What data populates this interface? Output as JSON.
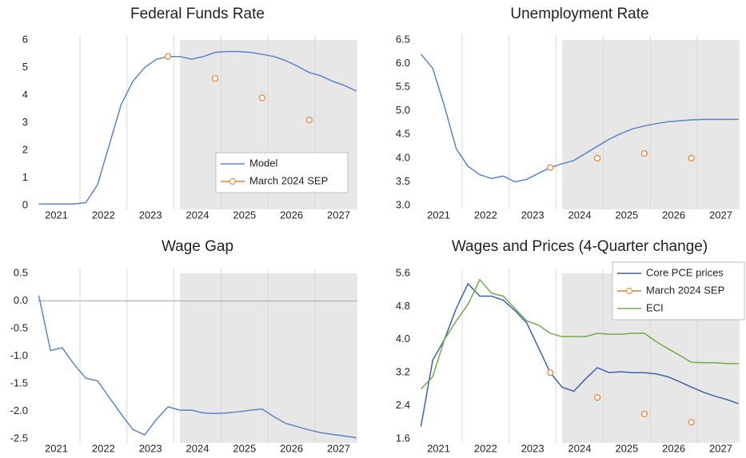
{
  "chart_data": [
    {
      "type": "line",
      "title": "Federal Funds Rate",
      "x": [
        2021.125,
        2021.375,
        2021.625,
        2021.875,
        2022.125,
        2022.375,
        2022.625,
        2022.875,
        2023.125,
        2023.375,
        2023.625,
        2023.875,
        2024.125,
        2024.375,
        2024.625,
        2024.875,
        2025.125,
        2025.375,
        2025.625,
        2025.875,
        2026.125,
        2026.375,
        2026.625,
        2026.875,
        2027.125,
        2027.375,
        2027.625,
        2027.875
      ],
      "series": [
        {
          "name": "Model",
          "color": "#5b84c9",
          "style": "line",
          "values": [
            0.05,
            0.05,
            0.05,
            0.05,
            0.1,
            0.75,
            2.2,
            3.65,
            4.5,
            5.0,
            5.3,
            5.4,
            5.4,
            5.3,
            5.4,
            5.55,
            5.58,
            5.58,
            5.55,
            5.48,
            5.4,
            5.25,
            5.05,
            4.82,
            4.7,
            4.5,
            4.35,
            4.15
          ]
        },
        {
          "name": "March 2024 SEP",
          "color": "#ed7d31",
          "style": "markers",
          "values": [
            null,
            null,
            null,
            null,
            null,
            null,
            null,
            null,
            null,
            null,
            null,
            5.4,
            null,
            null,
            null,
            4.6,
            null,
            null,
            null,
            3.9,
            null,
            null,
            null,
            3.1,
            null,
            null,
            null,
            null
          ]
        }
      ],
      "xlim": [
        2021.1,
        2027.9
      ],
      "ylim": [
        0,
        6
      ],
      "yticks": [
        0,
        1,
        2,
        3,
        4,
        5,
        6
      ],
      "xticks": [
        {
          "value": 2021.5,
          "label": "2021"
        },
        {
          "value": 2022.5,
          "label": "2022"
        },
        {
          "value": 2023.5,
          "label": "2023"
        },
        {
          "value": 2024.5,
          "label": "2024"
        },
        {
          "value": 2025.5,
          "label": "2025"
        },
        {
          "value": 2026.5,
          "label": "2026"
        },
        {
          "value": 2027.5,
          "label": "2027"
        }
      ],
      "xgrid": [
        2022,
        2023,
        2024,
        2025,
        2026,
        2027
      ],
      "shade_from": 2024.125,
      "legend": "lower right"
    },
    {
      "type": "line",
      "title": "Unemployment Rate",
      "x": [
        2021.125,
        2021.375,
        2021.625,
        2021.875,
        2022.125,
        2022.375,
        2022.625,
        2022.875,
        2023.125,
        2023.375,
        2023.625,
        2023.875,
        2024.125,
        2024.375,
        2024.625,
        2024.875,
        2025.125,
        2025.375,
        2025.625,
        2025.875,
        2026.125,
        2026.375,
        2026.625,
        2026.875,
        2027.125,
        2027.375,
        2027.625,
        2027.875
      ],
      "series": [
        {
          "name": "Model",
          "color": "#5b84c9",
          "style": "line",
          "values": [
            6.2,
            5.9,
            5.1,
            4.2,
            3.83,
            3.65,
            3.57,
            3.62,
            3.5,
            3.55,
            3.68,
            3.8,
            3.88,
            3.95,
            4.1,
            4.25,
            4.4,
            4.52,
            4.62,
            4.68,
            4.73,
            4.77,
            4.79,
            4.81,
            4.82,
            4.82,
            4.82,
            4.82
          ]
        },
        {
          "name": "March 2024 SEP",
          "color": "#ed7d31",
          "style": "markers",
          "values": [
            null,
            null,
            null,
            null,
            null,
            null,
            null,
            null,
            null,
            null,
            null,
            3.8,
            null,
            null,
            null,
            4.0,
            null,
            null,
            null,
            4.1,
            null,
            null,
            null,
            4.0,
            null,
            null,
            null,
            null
          ]
        }
      ],
      "xlim": [
        2021.1,
        2027.9
      ],
      "ylim": [
        3,
        6.5
      ],
      "yticks": [
        {
          "value": 3,
          "label": "3.0"
        },
        3.5,
        {
          "value": 4,
          "label": "4.0"
        },
        4.5,
        {
          "value": 5,
          "label": "5.0"
        },
        5.5,
        {
          "value": 6,
          "label": "6.0"
        },
        6.5
      ],
      "xticks": [
        {
          "value": 2021.5,
          "label": "2021"
        },
        {
          "value": 2022.5,
          "label": "2022"
        },
        {
          "value": 2023.5,
          "label": "2023"
        },
        {
          "value": 2024.5,
          "label": "2024"
        },
        {
          "value": 2025.5,
          "label": "2025"
        },
        {
          "value": 2026.5,
          "label": "2026"
        },
        {
          "value": 2027.5,
          "label": "2027"
        }
      ],
      "xgrid": [
        2022,
        2023,
        2024,
        2025,
        2026,
        2027
      ],
      "shade_from": 2024.125
    },
    {
      "type": "line",
      "title": "Wage Gap",
      "x": [
        2021.125,
        2021.375,
        2021.625,
        2021.875,
        2022.125,
        2022.375,
        2022.625,
        2022.875,
        2023.125,
        2023.375,
        2023.625,
        2023.875,
        2024.125,
        2024.375,
        2024.625,
        2024.875,
        2025.125,
        2025.375,
        2025.625,
        2025.875,
        2026.125,
        2026.375,
        2026.625,
        2026.875,
        2027.125,
        2027.375,
        2027.625,
        2027.875
      ],
      "series": [
        {
          "name": "Model",
          "color": "#5b84c9",
          "style": "line",
          "values": [
            0.1,
            -0.9,
            -0.85,
            -1.15,
            -1.4,
            -1.45,
            -1.75,
            -2.05,
            -2.33,
            -2.43,
            -2.15,
            -1.92,
            -1.98,
            -1.98,
            -2.03,
            -2.04,
            -2.03,
            -2.01,
            -1.98,
            -1.96,
            -2.1,
            -2.22,
            -2.28,
            -2.34,
            -2.39,
            -2.42,
            -2.45,
            -2.48
          ]
        }
      ],
      "xlim": [
        2021.1,
        2027.9
      ],
      "ylim": [
        -2.5,
        0.5
      ],
      "yticks": [
        -2.5,
        {
          "value": -2,
          "label": "-2.0"
        },
        -1.5,
        {
          "value": -1,
          "label": "-1.0"
        },
        -0.5,
        {
          "value": 0,
          "label": "0.0"
        },
        0.5
      ],
      "xticks": [
        {
          "value": 2021.5,
          "label": "2021"
        },
        {
          "value": 2022.5,
          "label": "2022"
        },
        {
          "value": 2023.5,
          "label": "2023"
        },
        {
          "value": 2024.5,
          "label": "2024"
        },
        {
          "value": 2025.5,
          "label": "2025"
        },
        {
          "value": 2026.5,
          "label": "2026"
        },
        {
          "value": 2027.5,
          "label": "2027"
        }
      ],
      "xgrid": [
        2022,
        2023,
        2024,
        2025,
        2026,
        2027
      ],
      "shade_from": 2024.125,
      "zero_line": true
    },
    {
      "type": "line",
      "title": "Wages and Prices (4-Quarter change)",
      "x": [
        2021.125,
        2021.375,
        2021.625,
        2021.875,
        2022.125,
        2022.375,
        2022.625,
        2022.875,
        2023.125,
        2023.375,
        2023.625,
        2023.875,
        2024.125,
        2024.375,
        2024.625,
        2024.875,
        2025.125,
        2025.375,
        2025.625,
        2025.875,
        2026.125,
        2026.375,
        2026.625,
        2026.875,
        2027.125,
        2027.375,
        2027.625,
        2027.875
      ],
      "series": [
        {
          "name": "Core PCE prices",
          "color": "#3f62ad",
          "style": "line",
          "values": [
            1.9,
            3.5,
            4.0,
            4.75,
            5.35,
            5.05,
            5.05,
            4.95,
            4.7,
            4.4,
            3.8,
            3.2,
            2.85,
            2.75,
            3.05,
            3.32,
            3.2,
            3.22,
            3.2,
            3.2,
            3.17,
            3.1,
            2.98,
            2.85,
            2.73,
            2.63,
            2.55,
            2.45
          ]
        },
        {
          "name": "March 2024 SEP",
          "color": "#ed7d31",
          "style": "markers",
          "values": [
            null,
            null,
            null,
            null,
            null,
            null,
            null,
            null,
            null,
            null,
            null,
            3.2,
            null,
            null,
            null,
            2.6,
            null,
            null,
            null,
            2.2,
            null,
            null,
            null,
            2.0,
            null,
            null,
            null,
            null
          ]
        },
        {
          "name": "ECI",
          "color": "#70ad47",
          "style": "line",
          "values": [
            2.8,
            3.1,
            4.0,
            4.45,
            4.85,
            5.45,
            5.12,
            5.05,
            4.75,
            4.45,
            4.35,
            4.15,
            4.07,
            4.07,
            4.07,
            4.15,
            4.13,
            4.13,
            4.15,
            4.15,
            3.95,
            3.78,
            3.62,
            3.45,
            3.44,
            3.44,
            3.42,
            3.42
          ]
        }
      ],
      "xlim": [
        2021.1,
        2027.9
      ],
      "ylim": [
        1.6,
        5.6
      ],
      "yticks": [
        1.6,
        2.4,
        3.2,
        {
          "value": 4,
          "label": "4.0"
        },
        4.8,
        5.6
      ],
      "xticks": [
        {
          "value": 2021.5,
          "label": "2021"
        },
        {
          "value": 2022.5,
          "label": "2022"
        },
        {
          "value": 2023.5,
          "label": "2023"
        },
        {
          "value": 2024.5,
          "label": "2024"
        },
        {
          "value": 2025.5,
          "label": "2025"
        },
        {
          "value": 2026.5,
          "label": "2026"
        },
        {
          "value": 2027.5,
          "label": "2027"
        }
      ],
      "xgrid": [
        2022,
        2023,
        2024,
        2025,
        2026,
        2027
      ],
      "shade_from": 2024.125,
      "legend": "upper right"
    }
  ]
}
